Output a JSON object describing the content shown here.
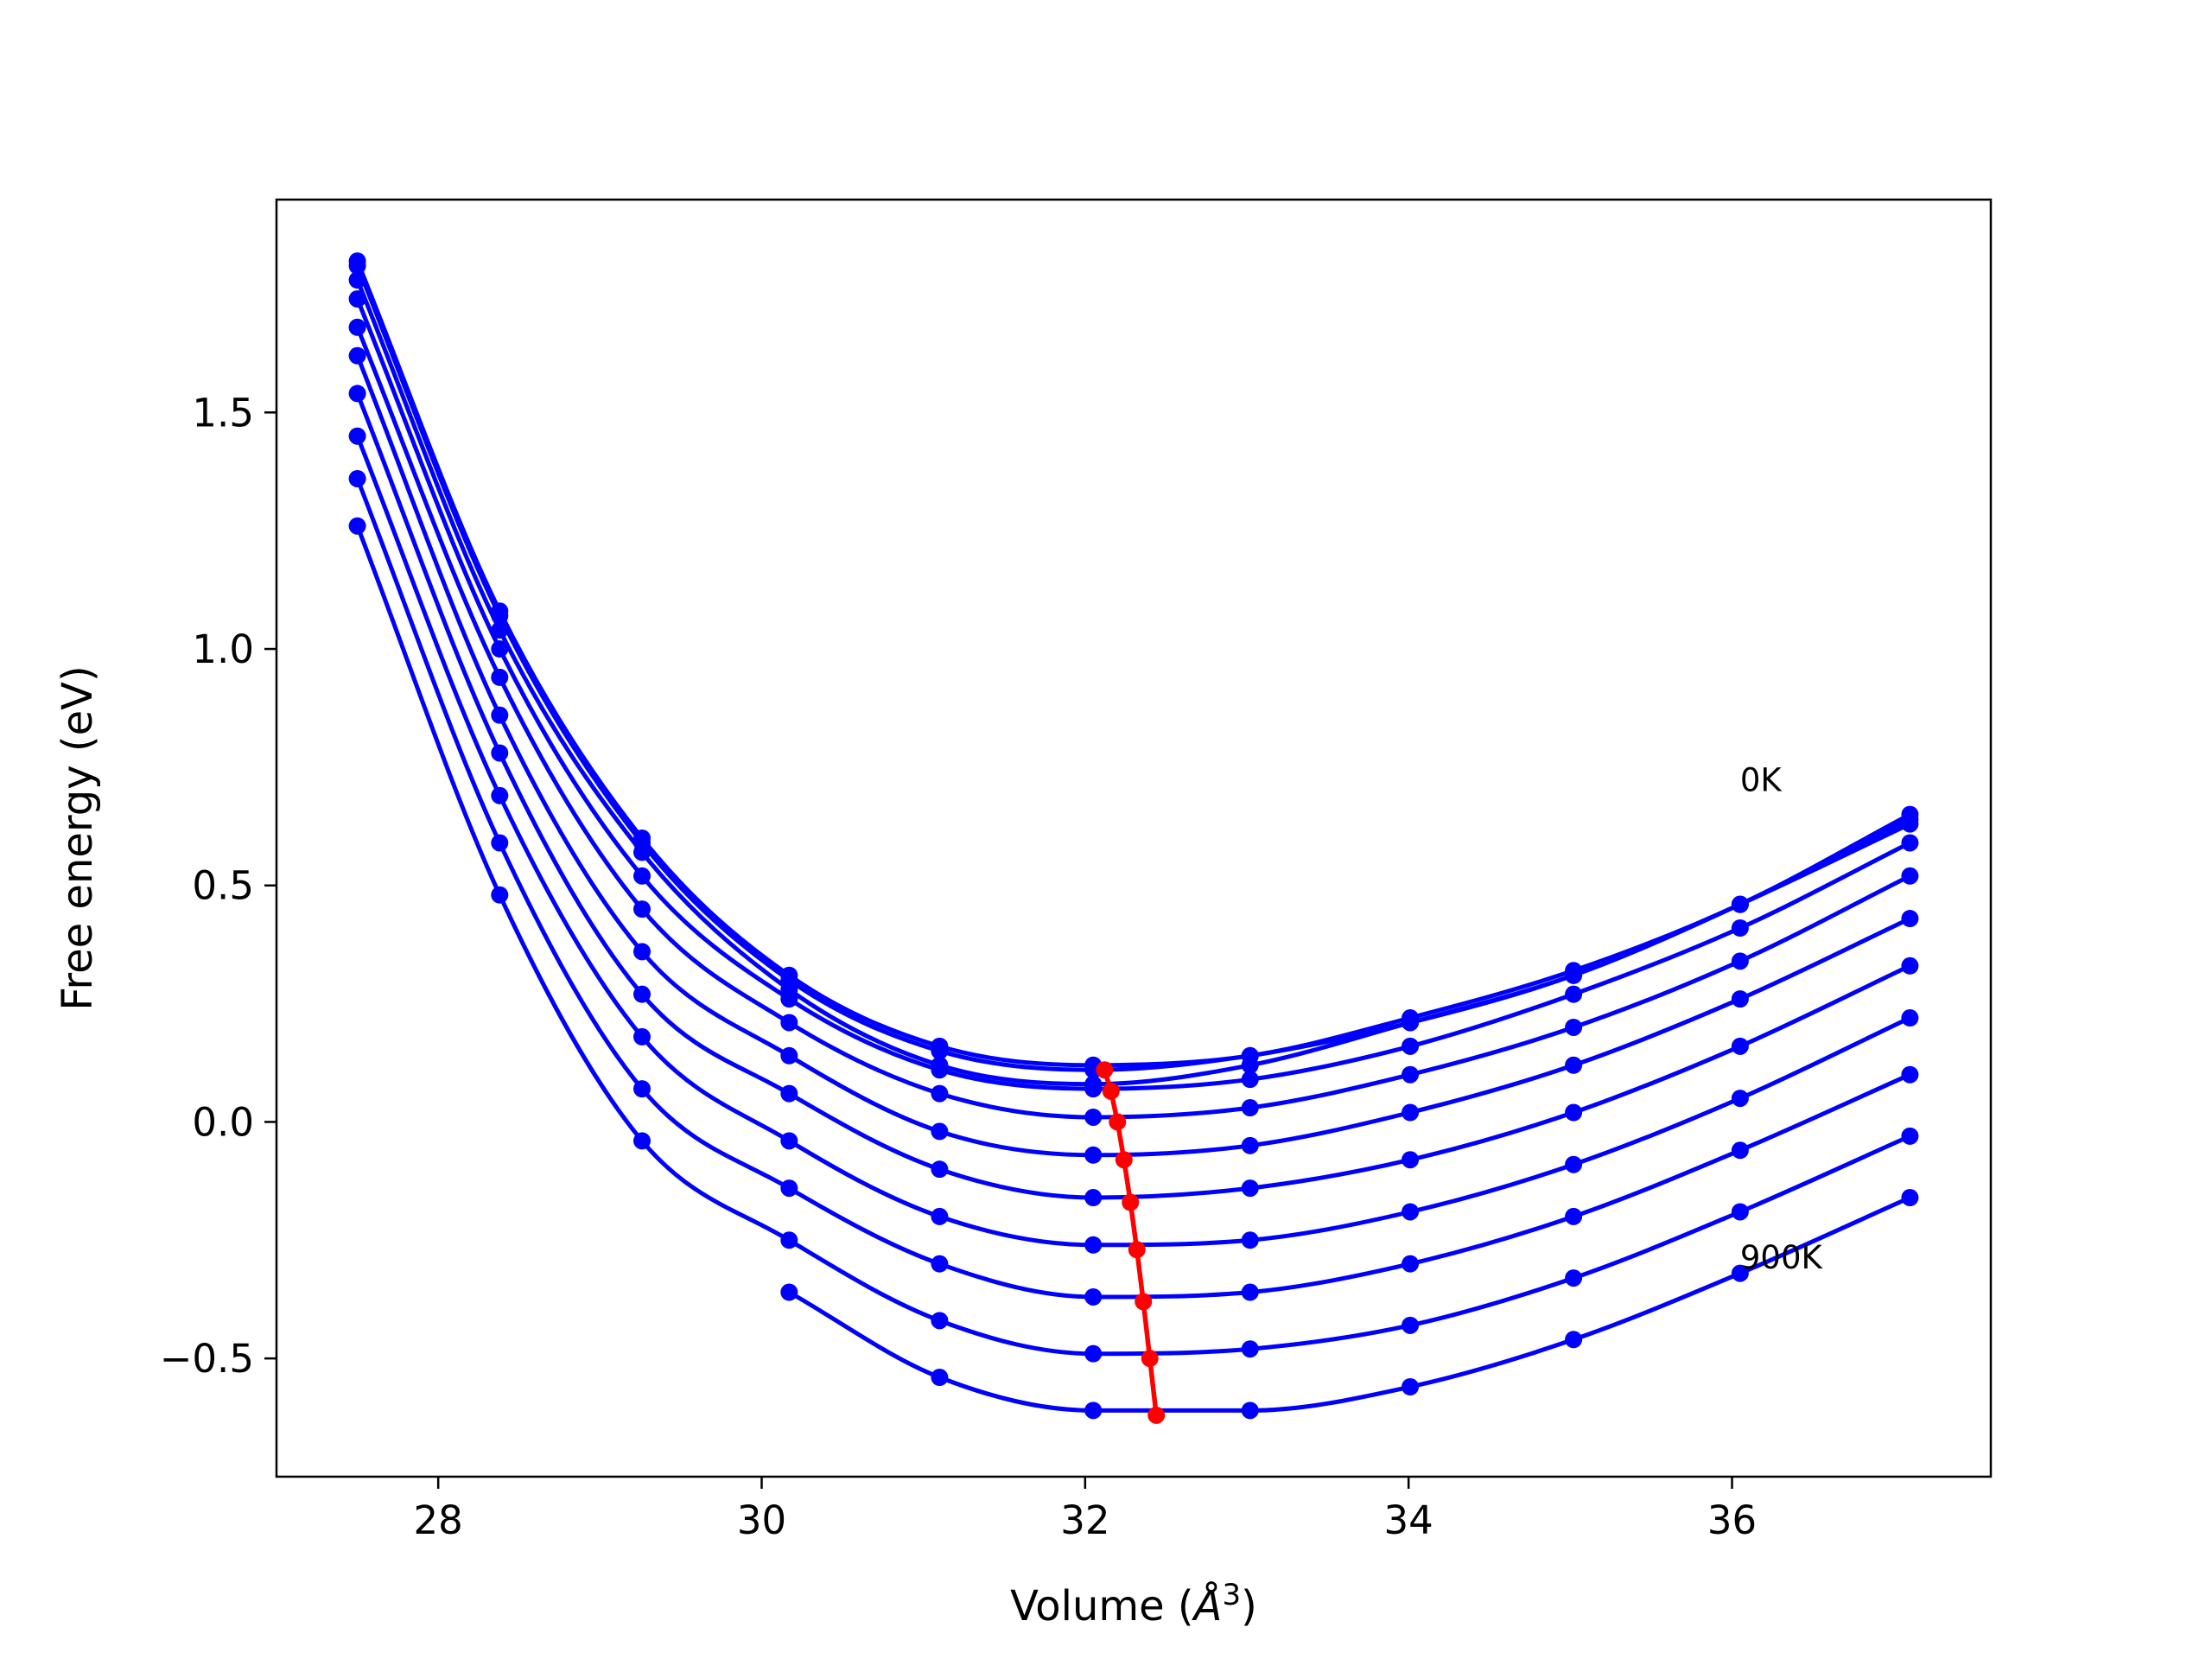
{
  "chart_data": {
    "type": "line",
    "title": "",
    "xlabel": "Volume ($Å^3$)",
    "xlabel_main": "Volume (",
    "xlabel_symbol": "Å",
    "xlabel_exp": "3",
    "xlabel_close": ")",
    "ylabel": "Free energy (eV)",
    "xlim": [
      27.0,
      37.6
    ],
    "ylim": [
      -0.75,
      1.95
    ],
    "xticks": [
      28,
      30,
      32,
      34,
      36
    ],
    "xtick_labels": [
      "28",
      "30",
      "32",
      "34",
      "36"
    ],
    "yticks": [
      -0.5,
      0.0,
      0.5,
      1.0,
      1.5
    ],
    "ytick_labels": [
      "−0.5",
      "0.0",
      "0.5",
      "1.0",
      "1.5"
    ],
    "grid": false,
    "legend": "none",
    "x": [
      27.5,
      28.38,
      29.26,
      30.17,
      31.1,
      32.05,
      33.02,
      34.01,
      35.02,
      36.05,
      37.1
    ],
    "series": [
      {
        "values": [
          1.82,
          1.08,
          0.6,
          0.31,
          0.16,
          0.12,
          0.14,
          0.22,
          0.32,
          0.46,
          0.65
        ]
      },
      {
        "values": [
          1.81,
          1.07,
          0.59,
          0.3,
          0.15,
          0.11,
          0.14,
          0.21,
          0.31,
          0.46,
          0.64
        ]
      },
      {
        "values": [
          1.78,
          1.04,
          0.57,
          0.28,
          0.12,
          0.08,
          0.12,
          0.21,
          0.31,
          0.46,
          0.63
        ]
      },
      {
        "values": [
          1.74,
          1.0,
          0.52,
          0.26,
          0.11,
          0.07,
          0.09,
          0.16,
          0.27,
          0.41,
          0.59
        ]
      },
      {
        "values": [
          1.68,
          0.94,
          0.45,
          0.21,
          0.06,
          0.01,
          0.03,
          0.1,
          0.2,
          0.34,
          0.52
        ]
      },
      {
        "values": [
          1.62,
          0.86,
          0.36,
          0.14,
          -0.02,
          -0.07,
          -0.05,
          0.02,
          0.12,
          0.26,
          0.43
        ]
      },
      {
        "values": [
          1.54,
          0.78,
          0.27,
          0.06,
          -0.1,
          -0.16,
          -0.14,
          -0.08,
          0.02,
          0.16,
          0.33
        ]
      },
      {
        "values": [
          1.45,
          0.69,
          0.18,
          -0.04,
          -0.2,
          -0.26,
          -0.25,
          -0.19,
          -0.09,
          0.05,
          0.22
        ]
      },
      {
        "values": [
          1.36,
          0.59,
          0.07,
          -0.14,
          -0.3,
          -0.37,
          -0.36,
          -0.3,
          -0.2,
          -0.06,
          0.1
        ]
      },
      {
        "values": [
          1.26,
          0.48,
          -0.04,
          -0.25,
          -0.42,
          -0.49,
          -0.48,
          -0.43,
          -0.33,
          -0.19,
          -0.03
        ]
      },
      {
        "values": [
          null,
          null,
          null,
          -0.36,
          -0.54,
          -0.61,
          -0.61,
          -0.56,
          -0.46,
          -0.32,
          -0.16
        ]
      }
    ],
    "minimum_path": {
      "x": [
        32.12,
        32.16,
        32.2,
        32.24,
        32.28,
        32.32,
        32.36,
        32.4,
        32.44
      ],
      "y": [
        0.11,
        0.065,
        0.0,
        -0.08,
        -0.17,
        -0.27,
        -0.38,
        -0.5,
        -0.62
      ]
    },
    "annotations": [
      {
        "text": "0K",
        "x": 36.05,
        "y": 0.7
      },
      {
        "text": "900K",
        "x": 36.05,
        "y": -0.31
      }
    ],
    "colors": {
      "curves": "#0000ff",
      "minimum_path": "#ff0000",
      "frame": "#000000"
    }
  }
}
